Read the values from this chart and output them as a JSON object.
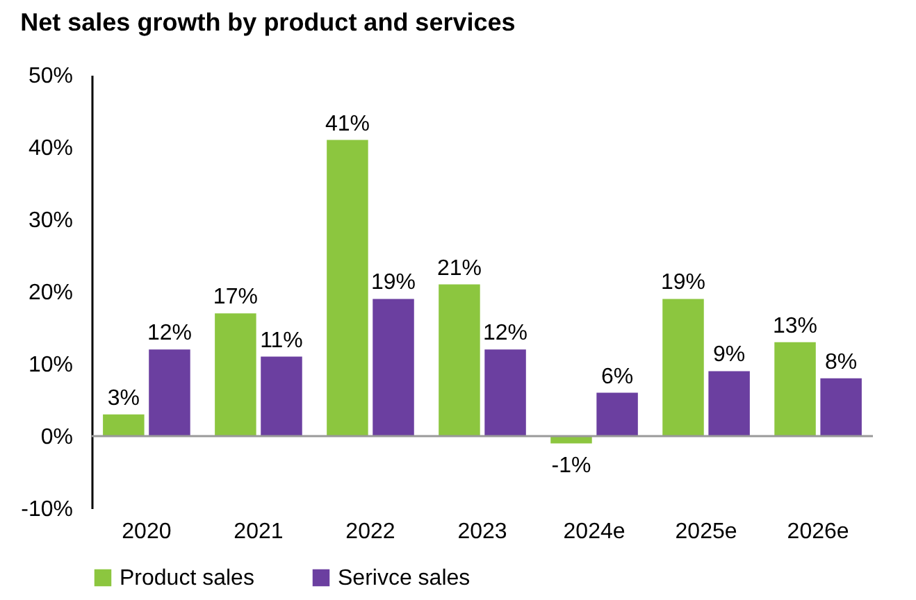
{
  "chart_data": {
    "type": "bar",
    "title": "Net sales growth by product and services",
    "categories": [
      "2020",
      "2021",
      "2022",
      "2023",
      "2024e",
      "2025e",
      "2026e"
    ],
    "series": [
      {
        "name": "Product sales",
        "color": "#8cc63f",
        "values": [
          3,
          17,
          41,
          21,
          -1,
          19,
          13
        ],
        "value_labels": [
          "3%",
          "17%",
          "41%",
          "21%",
          "-1%",
          "19%",
          "13%"
        ]
      },
      {
        "name": "Serivce sales",
        "color": "#6b3fa0",
        "values": [
          12,
          11,
          19,
          12,
          6,
          9,
          8
        ],
        "value_labels": [
          "12%",
          "11%",
          "19%",
          "12%",
          "6%",
          "9%",
          "8%"
        ]
      }
    ],
    "ylim": [
      -10,
      50
    ],
    "yticks": [
      {
        "value": -10,
        "label": "-10%"
      },
      {
        "value": 0,
        "label": "0%"
      },
      {
        "value": 10,
        "label": "10%"
      },
      {
        "value": 20,
        "label": "20%"
      },
      {
        "value": 30,
        "label": "30%"
      },
      {
        "value": 40,
        "label": "40%"
      },
      {
        "value": 50,
        "label": "50%"
      }
    ],
    "legend": "bottom"
  }
}
